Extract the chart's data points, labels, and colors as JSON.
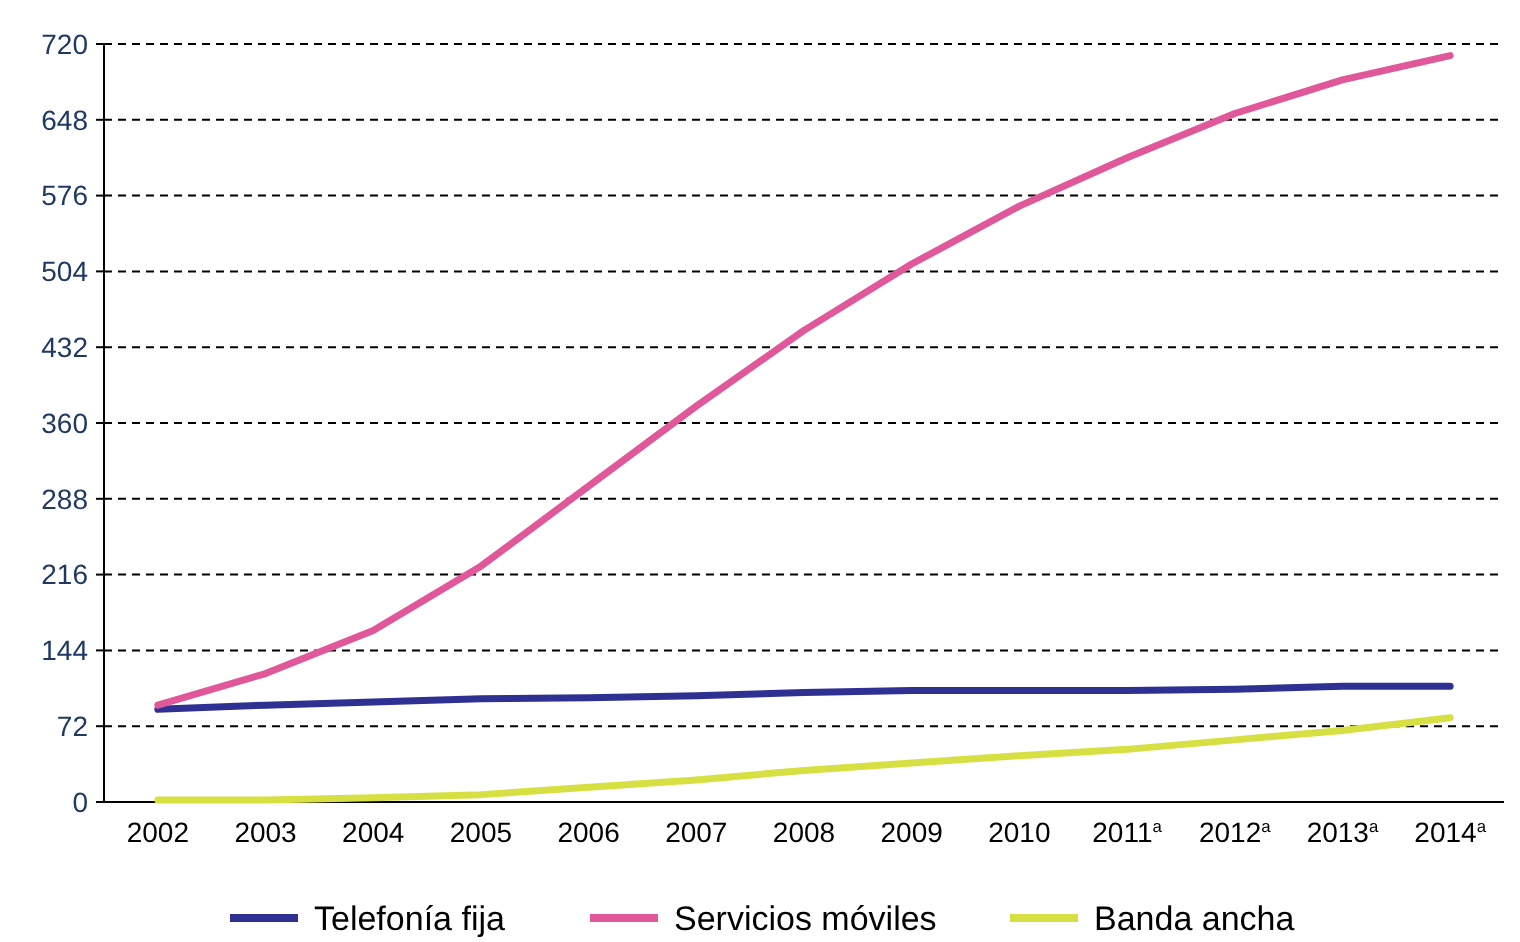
{
  "chart_data": {
    "type": "line",
    "categories": [
      "2002",
      "2003",
      "2004",
      "2005",
      "2006",
      "2007",
      "2008",
      "2009",
      "2010",
      "2011$^{a}$",
      "2012$^{a}$",
      "2013$^{a}$",
      "2014$^{a}$"
    ],
    "series": [
      {
        "name": "Telefonía fija",
        "color": "#2e3192",
        "values": [
          88,
          92,
          95,
          98,
          99,
          101,
          104,
          106,
          106,
          106,
          107,
          110,
          110
        ]
      },
      {
        "name": "Servicios móviles",
        "color": "#e0589a",
        "values": [
          92,
          122,
          163,
          224,
          300,
          376,
          448,
          511,
          566,
          612,
          654,
          686,
          709
        ]
      },
      {
        "name": "Banda ancha",
        "color": "#d7e043",
        "values": [
          2,
          2,
          4,
          7,
          14,
          21,
          30,
          37,
          44,
          50,
          59,
          68,
          80
        ]
      }
    ],
    "ylim": [
      0,
      720
    ],
    "yticks": [
      0,
      72,
      144,
      216,
      288,
      360,
      432,
      504,
      576,
      648,
      720
    ],
    "grid": "y",
    "legend": "bottom"
  }
}
